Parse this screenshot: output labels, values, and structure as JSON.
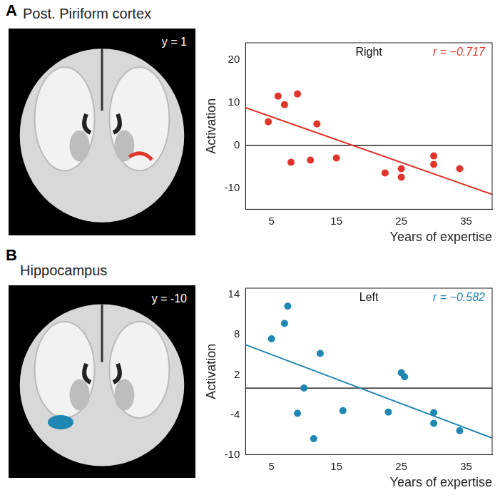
{
  "chart_data": [
    {
      "type": "scatter",
      "panel": {
        "letter": "A",
        "title": "Post. Piriform cortex",
        "slice": "y = 1"
      },
      "title": "Right",
      "annotations": [
        "r = −0.717"
      ],
      "x_label": "Years of expertise",
      "y_label": "Activation",
      "xlim": [
        1,
        39
      ],
      "xticks": [
        5,
        15,
        25,
        35
      ],
      "ylim": [
        -15,
        24
      ],
      "yticks": [
        -10,
        0,
        10,
        20
      ],
      "grid": false,
      "series": [
        {
          "type": "scatter",
          "color": "#e0352b",
          "marker": "circle",
          "x": [
            4.5,
            6,
            7,
            8,
            9,
            11,
            12,
            15,
            22.5,
            25,
            25,
            30,
            30,
            34
          ],
          "values": [
            5.5,
            11.5,
            9.5,
            -4,
            12,
            -3.5,
            5,
            -3,
            -6.5,
            -5.5,
            -7.5,
            -2.5,
            -4.5,
            -5.5
          ]
        },
        {
          "type": "line",
          "color": "#e0352b",
          "x": [
            1,
            39
          ],
          "values": [
            8.8,
            -11.5
          ]
        },
        {
          "type": "line",
          "color": "#000000",
          "x": [
            1,
            39
          ],
          "values": [
            0,
            0
          ]
        }
      ]
    },
    {
      "type": "scatter",
      "panel": {
        "letter": "B",
        "title": "Hippocampus",
        "slice": "y = -10"
      },
      "title": "Left",
      "annotations": [
        "r = −0.582"
      ],
      "x_label": "Years of expertise",
      "y_label": "Activation",
      "xlim": [
        1,
        39
      ],
      "xticks": [
        5,
        15,
        25,
        35
      ],
      "ylim": [
        -10,
        15
      ],
      "yticks": [
        -10,
        -4,
        2,
        8,
        14
      ],
      "grid": false,
      "series": [
        {
          "type": "scatter",
          "color": "#1f87b3",
          "marker": "circle",
          "x": [
            5,
            7,
            7.5,
            9,
            10,
            11.5,
            12.5,
            16,
            23,
            25,
            25.5,
            30,
            30,
            34
          ],
          "values": [
            7.4,
            9.7,
            12.3,
            -3.8,
            0,
            -7.6,
            5.2,
            -3.4,
            -3.6,
            2.3,
            1.7,
            -3.7,
            -5.3,
            -6.4
          ]
        },
        {
          "type": "line",
          "color": "#1f87b3",
          "x": [
            1,
            39
          ],
          "values": [
            6.5,
            -7.5
          ]
        },
        {
          "type": "line",
          "color": "#000000",
          "x": [
            1,
            39
          ],
          "values": [
            0,
            0
          ]
        }
      ]
    }
  ]
}
